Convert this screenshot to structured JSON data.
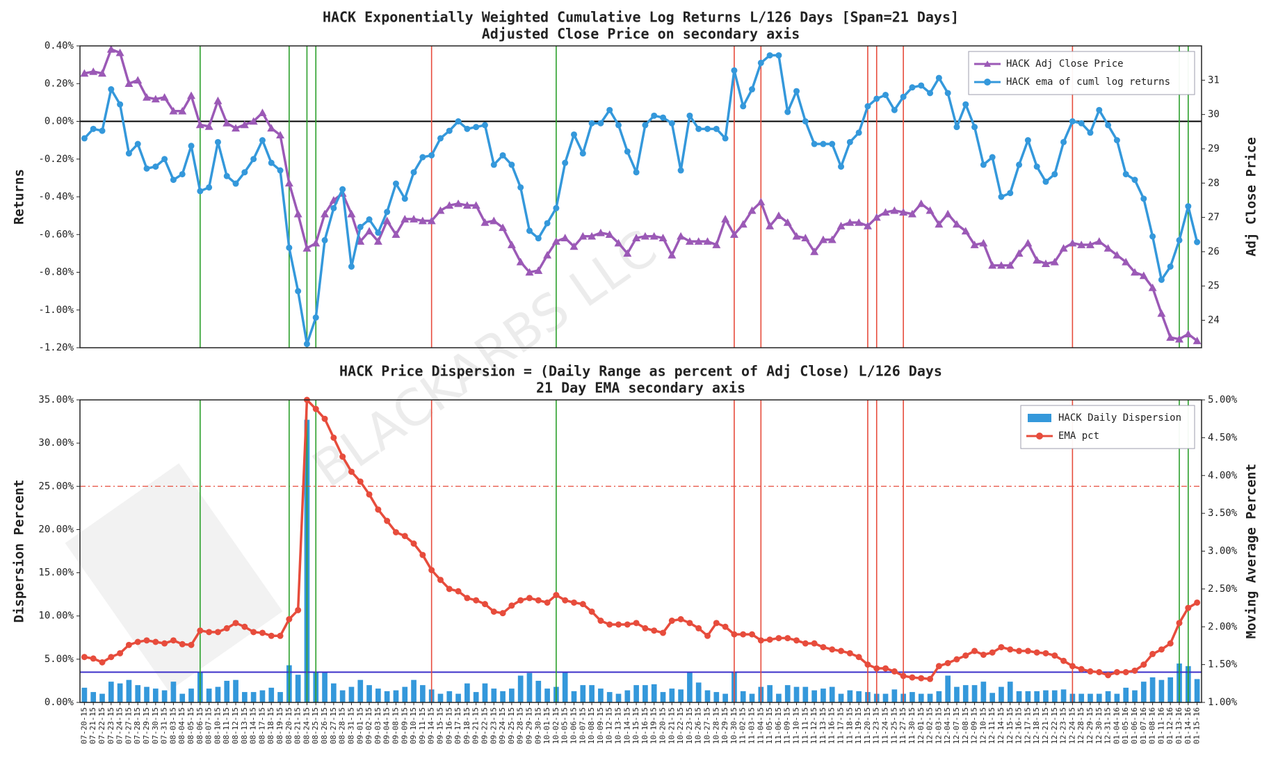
{
  "watermark": "BLACKARBS LLC",
  "chart_data": [
    {
      "type": "line",
      "title": "HACK Exponentially Weighted Cumulative Log Returns L/126 Days [Span=21 Days]",
      "subtitle": "Adjusted Close Price on secondary axis",
      "ylabel": "Returns",
      "y2label": "Adj Close Price",
      "ylim": [
        -1.2,
        0.4
      ],
      "yticks": [
        {
          "value": -1.2,
          "label": "-1.20%"
        },
        {
          "value": -1.0,
          "label": "-1.00%"
        },
        {
          "value": -0.8,
          "label": "-0.80%"
        },
        {
          "value": -0.6,
          "label": "-0.60%"
        },
        {
          "value": -0.4,
          "label": "-0.40%"
        },
        {
          "value": -0.2,
          "label": "-0.20%"
        },
        {
          "value": 0,
          "label": "0.00%"
        },
        {
          "value": 0.2,
          "label": "0.20%"
        },
        {
          "value": 0.4,
          "label": "0.40%"
        }
      ],
      "y2lim": [
        23.2,
        32
      ],
      "y2ticks": [
        24,
        25,
        26,
        27,
        28,
        29,
        30,
        31
      ],
      "legend": "upper right",
      "hlines": [
        {
          "y": 0,
          "color": "#000000",
          "style": "solid"
        }
      ],
      "vlines": [
        {
          "x": 13,
          "color": "#2ca02c"
        },
        {
          "x": 23,
          "color": "#2ca02c"
        },
        {
          "x": 25,
          "color": "#2ca02c"
        },
        {
          "x": 26,
          "color": "#2ca02c"
        },
        {
          "x": 53,
          "color": "#2ca02c"
        },
        {
          "x": 123,
          "color": "#2ca02c"
        },
        {
          "x": 124,
          "color": "#2ca02c"
        },
        {
          "x": 39,
          "color": "#e74c3c"
        },
        {
          "x": 73,
          "color": "#e74c3c"
        },
        {
          "x": 76,
          "color": "#e74c3c"
        },
        {
          "x": 88,
          "color": "#e74c3c"
        },
        {
          "x": 89,
          "color": "#e74c3c"
        },
        {
          "x": 92,
          "color": "#e74c3c"
        },
        {
          "x": 111,
          "color": "#e74c3c"
        }
      ],
      "series": [
        {
          "name": "HACK Adj Close Price",
          "color": "#9b59b6",
          "marker": "triangle",
          "axis": "y2",
          "values": [
            31.2,
            31.25,
            31.2,
            31.9,
            31.8,
            30.9,
            31.0,
            30.5,
            30.45,
            30.5,
            30.1,
            30.1,
            30.55,
            29.7,
            29.65,
            30.4,
            29.75,
            29.6,
            29.7,
            29.8,
            30.05,
            29.6,
            29.4,
            28.0,
            27.1,
            26.1,
            26.25,
            27.1,
            27.5,
            27.7,
            27.1,
            26.3,
            26.6,
            26.3,
            26.9,
            26.5,
            26.95,
            26.95,
            26.9,
            26.9,
            27.2,
            27.35,
            27.4,
            27.35,
            27.35,
            26.85,
            26.9,
            26.7,
            26.2,
            25.7,
            25.4,
            25.45,
            25.9,
            26.3,
            26.4,
            26.15,
            26.45,
            26.45,
            26.55,
            26.5,
            26.25,
            25.95,
            26.4,
            26.45,
            26.45,
            26.4,
            25.9,
            26.45,
            26.3,
            26.3,
            26.3,
            26.2,
            26.95,
            26.5,
            26.8,
            27.2,
            27.45,
            26.75,
            27.05,
            26.85,
            26.45,
            26.4,
            26.0,
            26.35,
            26.35,
            26.75,
            26.85,
            26.85,
            26.75,
            27.0,
            27.15,
            27.2,
            27.15,
            27.1,
            27.4,
            27.2,
            26.8,
            27.1,
            26.8,
            26.6,
            26.2,
            26.25,
            25.6,
            25.6,
            25.6,
            25.95,
            26.25,
            25.75,
            25.65,
            25.7,
            26.1,
            26.25,
            26.2,
            26.2,
            26.3,
            26.1,
            25.9,
            25.7,
            25.4,
            25.3,
            24.95,
            24.2,
            23.5,
            23.45,
            23.6,
            23.4
          ]
        },
        {
          "name": "HACK ema of cuml log returns",
          "color": "#3498db",
          "marker": "circle",
          "values": [
            -0.09,
            -0.04,
            -0.05,
            0.17,
            0.09,
            -0.17,
            -0.12,
            -0.25,
            -0.24,
            -0.2,
            -0.31,
            -0.28,
            -0.13,
            -0.37,
            -0.35,
            -0.11,
            -0.29,
            -0.33,
            -0.27,
            -0.2,
            -0.1,
            -0.22,
            -0.26,
            -0.67,
            -0.9,
            -1.18,
            -1.04,
            -0.63,
            -0.46,
            -0.36,
            -0.77,
            -0.56,
            -0.52,
            -0.59,
            -0.48,
            -0.33,
            -0.41,
            -0.27,
            -0.19,
            -0.18,
            -0.09,
            -0.05,
            0,
            -0.04,
            -0.03,
            -0.02,
            -0.23,
            -0.18,
            -0.23,
            -0.35,
            -0.58,
            -0.62,
            -0.54,
            -0.46,
            -0.22,
            -0.07,
            -0.17,
            -0.01,
            -0.01,
            0.06,
            -0.02,
            -0.16,
            -0.27,
            -0.02,
            0.03,
            0.02,
            -0.01,
            -0.26,
            0.03,
            -0.04,
            -0.04,
            -0.04,
            -0.09,
            0.27,
            0.08,
            0.17,
            0.31,
            0.35,
            0.35,
            0.05,
            0.16,
            0,
            -0.12,
            -0.12,
            -0.12,
            -0.24,
            -0.11,
            -0.06,
            0.08,
            0.12,
            0.14,
            0.06,
            0.13,
            0.18,
            0.19,
            0.15,
            0.23,
            0.15,
            -0.03,
            0.09,
            -0.03,
            -0.23,
            -0.19,
            -0.4,
            -0.38,
            -0.23,
            -0.1,
            -0.24,
            -0.32,
            -0.28,
            -0.11,
            0,
            -0.01,
            -0.06,
            0.06,
            -0.02,
            -0.1,
            -0.28,
            -0.31,
            -0.41,
            -0.61,
            -0.84,
            -0.77,
            -0.63,
            -0.45,
            -0.64
          ]
        }
      ]
    },
    {
      "type": "bar",
      "title": "HACK Price Dispersion = (Daily Range as percent of Adj Close) L/126 Days",
      "subtitle": "21 Day EMA secondary axis",
      "ylabel": "Dispersion Percent",
      "y2label": "Moving Average Percent",
      "ylim": [
        0,
        35
      ],
      "yticks": [
        {
          "value": 0,
          "label": "0.00%"
        },
        {
          "value": 5,
          "label": "5.00%"
        },
        {
          "value": 10,
          "label": "10.00%"
        },
        {
          "value": 15,
          "label": "15.00%"
        },
        {
          "value": 20,
          "label": "20.00%"
        },
        {
          "value": 25,
          "label": "25.00%"
        },
        {
          "value": 30,
          "label": "30.00%"
        },
        {
          "value": 35,
          "label": "35.00%"
        }
      ],
      "y2lim": [
        1,
        5
      ],
      "y2ticks": [
        {
          "value": 1,
          "label": "1.00%"
        },
        {
          "value": 1.5,
          "label": "1.50%"
        },
        {
          "value": 2,
          "label": "2.00%"
        },
        {
          "value": 2.5,
          "label": "2.50%"
        },
        {
          "value": 3,
          "label": "3.00%"
        },
        {
          "value": 3.5,
          "label": "3.50%"
        },
        {
          "value": 4,
          "label": "4.00%"
        },
        {
          "value": 4.5,
          "label": "4.50%"
        },
        {
          "value": 5,
          "label": "5.00%"
        }
      ],
      "legend": "upper right",
      "hlines": [
        {
          "y": 25,
          "color": "#e74c3c",
          "style": "dashdot"
        },
        {
          "y": 3.5,
          "color": "#3b2fc9",
          "style": "solid"
        }
      ],
      "vlines": [
        {
          "x": 13,
          "color": "#2ca02c"
        },
        {
          "x": 23,
          "color": "#2ca02c"
        },
        {
          "x": 25,
          "color": "#2ca02c"
        },
        {
          "x": 26,
          "color": "#2ca02c"
        },
        {
          "x": 53,
          "color": "#2ca02c"
        },
        {
          "x": 123,
          "color": "#2ca02c"
        },
        {
          "x": 124,
          "color": "#2ca02c"
        },
        {
          "x": 39,
          "color": "#e74c3c"
        },
        {
          "x": 73,
          "color": "#e74c3c"
        },
        {
          "x": 76,
          "color": "#e74c3c"
        },
        {
          "x": 88,
          "color": "#e74c3c"
        },
        {
          "x": 89,
          "color": "#e74c3c"
        },
        {
          "x": 92,
          "color": "#e74c3c"
        },
        {
          "x": 111,
          "color": "#e74c3c"
        }
      ],
      "categories": [
        "07-20-15",
        "07-21-15",
        "07-22-15",
        "07-23-15",
        "07-24-15",
        "07-27-15",
        "07-28-15",
        "07-29-15",
        "07-30-15",
        "07-31-15",
        "08-03-15",
        "08-04-15",
        "08-05-15",
        "08-06-15",
        "08-07-15",
        "08-10-15",
        "08-11-15",
        "08-12-15",
        "08-13-15",
        "08-14-15",
        "08-17-15",
        "08-18-15",
        "08-19-15",
        "08-20-15",
        "08-21-15",
        "08-24-15",
        "08-25-15",
        "08-26-15",
        "08-27-15",
        "08-28-15",
        "08-31-15",
        "09-01-15",
        "09-02-15",
        "09-03-15",
        "09-04-15",
        "09-08-15",
        "09-09-15",
        "09-10-15",
        "09-11-15",
        "09-14-15",
        "09-15-15",
        "09-16-15",
        "09-17-15",
        "09-18-15",
        "09-21-15",
        "09-22-15",
        "09-23-15",
        "09-24-15",
        "09-25-15",
        "09-28-15",
        "09-29-15",
        "09-30-15",
        "10-01-15",
        "10-02-15",
        "10-05-15",
        "10-06-15",
        "10-07-15",
        "10-08-15",
        "10-09-15",
        "10-12-15",
        "10-13-15",
        "10-14-15",
        "10-15-15",
        "10-16-15",
        "10-19-15",
        "10-20-15",
        "10-21-15",
        "10-22-15",
        "10-23-15",
        "10-26-15",
        "10-27-15",
        "10-28-15",
        "10-29-15",
        "10-30-15",
        "11-02-15",
        "11-03-15",
        "11-04-15",
        "11-05-15",
        "11-06-15",
        "11-09-15",
        "11-10-15",
        "11-11-15",
        "11-12-15",
        "11-13-15",
        "11-16-15",
        "11-17-15",
        "11-18-15",
        "11-19-15",
        "11-20-15",
        "11-23-15",
        "11-24-15",
        "11-25-15",
        "11-27-15",
        "11-30-15",
        "12-01-15",
        "12-02-15",
        "12-03-15",
        "12-04-15",
        "12-07-15",
        "12-08-15",
        "12-09-15",
        "12-10-15",
        "12-11-15",
        "12-14-15",
        "12-15-15",
        "12-16-15",
        "12-17-15",
        "12-18-15",
        "12-21-15",
        "12-22-15",
        "12-23-15",
        "12-24-15",
        "12-28-15",
        "12-29-15",
        "12-30-15",
        "12-31-15",
        "01-04-16",
        "01-05-16",
        "01-06-16",
        "01-07-16",
        "01-08-16",
        "01-11-16",
        "01-12-16",
        "01-13-16",
        "01-14-16",
        "01-15-16"
      ],
      "series": [
        {
          "name": "HACK Daily Dispersion",
          "color": "#3498db",
          "type": "bar",
          "values": [
            1.7,
            1.2,
            1.0,
            2.4,
            2.2,
            2.6,
            2.0,
            1.8,
            1.6,
            1.4,
            2.4,
            1.0,
            1.6,
            3.5,
            1.6,
            1.8,
            2.5,
            2.6,
            1.2,
            1.2,
            1.4,
            1.7,
            1.2,
            4.3,
            3.2,
            32.7,
            3.5,
            3.5,
            2.2,
            1.4,
            1.8,
            2.6,
            2.0,
            1.6,
            1.3,
            1.4,
            1.8,
            2.6,
            2.0,
            1.5,
            1.0,
            1.3,
            1.0,
            2.2,
            1.2,
            2.2,
            1.6,
            1.3,
            1.6,
            3.1,
            3.4,
            2.5,
            1.6,
            1.8,
            3.5,
            1.3,
            2.0,
            2.0,
            1.6,
            1.2,
            1.0,
            1.4,
            2.0,
            2.0,
            2.1,
            1.2,
            1.6,
            1.5,
            3.5,
            2.3,
            1.4,
            1.2,
            1.0,
            3.5,
            1.3,
            1.0,
            1.8,
            2.0,
            1.0,
            2.0,
            1.8,
            1.8,
            1.4,
            1.6,
            1.8,
            1.0,
            1.4,
            1.3,
            1.2,
            1.0,
            1.0,
            1.5,
            1.0,
            1.2,
            1.0,
            1.0,
            1.3,
            3.1,
            1.8,
            2.0,
            2.0,
            2.4,
            1.1,
            1.8,
            2.4,
            1.3,
            1.3,
            1.3,
            1.4,
            1.4,
            1.5,
            1.0,
            1.0,
            1.0,
            1.0,
            1.3,
            1.0,
            1.7,
            1.4,
            2.4,
            2.9,
            2.6,
            2.9,
            4.5,
            4.2,
            2.7
          ]
        },
        {
          "name": "EMA pct",
          "color": "#e74c3c",
          "type": "line",
          "marker": "circle",
          "axis": "y2",
          "values": [
            1.6,
            1.58,
            1.53,
            1.6,
            1.65,
            1.76,
            1.8,
            1.82,
            1.8,
            1.78,
            1.82,
            1.77,
            1.76,
            1.95,
            1.93,
            1.93,
            1.98,
            2.05,
            2.0,
            1.93,
            1.92,
            1.88,
            1.88,
            2.1,
            2.22,
            5.0,
            4.88,
            4.75,
            4.5,
            4.25,
            4.05,
            3.92,
            3.75,
            3.55,
            3.4,
            3.25,
            3.2,
            3.1,
            2.95,
            2.75,
            2.62,
            2.5,
            2.47,
            2.38,
            2.35,
            2.3,
            2.2,
            2.18,
            2.28,
            2.35,
            2.38,
            2.35,
            2.32,
            2.42,
            2.35,
            2.32,
            2.3,
            2.2,
            2.08,
            2.03,
            2.03,
            2.03,
            2.05,
            1.98,
            1.95,
            1.92,
            2.08,
            2.1,
            2.05,
            1.98,
            1.88,
            2.05,
            2.0,
            1.9,
            1.9,
            1.9,
            1.82,
            1.83,
            1.85,
            1.85,
            1.82,
            1.78,
            1.78,
            1.73,
            1.7,
            1.68,
            1.65,
            1.6,
            1.5,
            1.45,
            1.45,
            1.41,
            1.35,
            1.33,
            1.32,
            1.31,
            1.48,
            1.52,
            1.57,
            1.62,
            1.68,
            1.63,
            1.66,
            1.73,
            1.7,
            1.68,
            1.68,
            1.66,
            1.65,
            1.62,
            1.55,
            1.48,
            1.44,
            1.41,
            1.4,
            1.36,
            1.4,
            1.4,
            1.42,
            1.5,
            1.64,
            1.7,
            1.78,
            2.05,
            2.25,
            2.32
          ]
        }
      ]
    }
  ]
}
